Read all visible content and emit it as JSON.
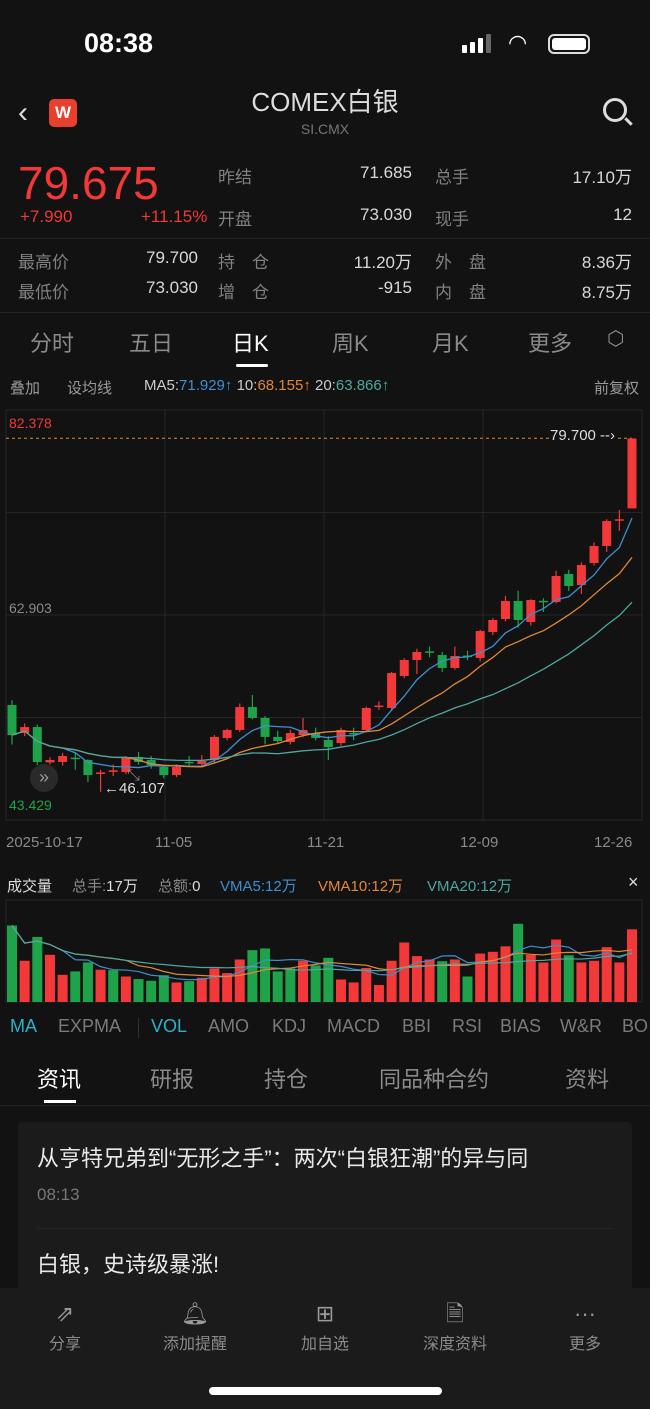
{
  "status": {
    "time": "08:38"
  },
  "header": {
    "title": "COMEX白银",
    "code": "SI.CMX",
    "logo": "W"
  },
  "quote": {
    "price": "79.675",
    "change": "+7.990",
    "change_pct": "+11.15%",
    "fields": [
      {
        "label": "昨结",
        "value": "71.685"
      },
      {
        "label": "总手",
        "value": "17.10万"
      },
      {
        "label": "开盘",
        "value": "73.030"
      },
      {
        "label": "现手",
        "value": "12"
      },
      {
        "label": "最高价",
        "value": "79.700"
      },
      {
        "label": "持　仓",
        "value": "11.20万"
      },
      {
        "label": "外　盘",
        "value": "8.36万"
      },
      {
        "label": "最低价",
        "value": "73.030"
      },
      {
        "label": "增　仓",
        "value": "-915"
      },
      {
        "label": "内　盘",
        "value": "8.75万"
      }
    ]
  },
  "period_tabs": [
    "分时",
    "五日",
    "日K",
    "周K",
    "月K",
    "更多"
  ],
  "active_period": "日K",
  "ma_bar": {
    "overlay": "叠加",
    "set_ma": "设均线",
    "ma5_label": "MA5:",
    "ma5": "71.929↑",
    "ma10_label": "10:",
    "ma10": "68.155↑",
    "ma20_label": "20:",
    "ma20": "63.866↑",
    "adjust": "前复权"
  },
  "colors": {
    "up": "#f23838",
    "down": "#1fa34a",
    "ma5": "#3d8fd1",
    "ma10": "#e0883a",
    "ma20": "#4fa6a0"
  },
  "chart_data": {
    "type": "candlestick",
    "ylim": [
      43.429,
      82.378
    ],
    "y_ticks": [
      "82.378",
      "62.903",
      "43.429"
    ],
    "x_ticks": [
      "2025-10-17",
      "11-05",
      "11-21",
      "12-09",
      "12-26"
    ],
    "high_marker": "79.700",
    "low_marker": "←46.107",
    "candles": [
      [
        54.35,
        54.8,
        50.6,
        51.5
      ],
      [
        51.69,
        52.6,
        51.4,
        52.26
      ],
      [
        52.26,
        52.5,
        48.65,
        48.94
      ],
      [
        48.9,
        49.4,
        48.7,
        49.13
      ],
      [
        48.94,
        49.8,
        48.6,
        49.51
      ],
      [
        49.35,
        49.9,
        48.2,
        49.25
      ],
      [
        49.13,
        49.2,
        47.04,
        47.7
      ],
      [
        47.8,
        48.2,
        46.107,
        47.95
      ],
      [
        48.0,
        48.7,
        47.6,
        48.15
      ],
      [
        47.99,
        49.5,
        47.8,
        49.32
      ],
      [
        49.41,
        49.9,
        48.7,
        48.94
      ],
      [
        49.13,
        49.5,
        48.3,
        48.65
      ],
      [
        48.46,
        48.6,
        47.4,
        47.7
      ],
      [
        47.7,
        48.7,
        47.5,
        48.46
      ],
      [
        48.95,
        49.5,
        48.5,
        48.9
      ],
      [
        48.75,
        49.6,
        48.6,
        49.03
      ],
      [
        49.13,
        51.5,
        48.9,
        51.32
      ],
      [
        51.22,
        52.1,
        51.0,
        51.98
      ],
      [
        51.98,
        54.5,
        51.8,
        54.16
      ],
      [
        54.16,
        55.3,
        53.0,
        53.12
      ],
      [
        53.12,
        53.3,
        50.6,
        51.32
      ],
      [
        51.32,
        51.9,
        50.7,
        50.93
      ],
      [
        50.84,
        52.0,
        50.6,
        51.69
      ],
      [
        51.5,
        53.12,
        51.3,
        51.98
      ],
      [
        51.69,
        52.2,
        51.0,
        51.22
      ],
      [
        51.03,
        51.4,
        49.13,
        50.36
      ],
      [
        50.74,
        52.2,
        50.5,
        51.98
      ],
      [
        51.7,
        52.2,
        51.0,
        51.6
      ],
      [
        51.98,
        54.2,
        51.8,
        54.07
      ],
      [
        54.2,
        54.7,
        53.9,
        54.3
      ],
      [
        54.07,
        57.5,
        53.8,
        57.39
      ],
      [
        57.11,
        58.8,
        56.9,
        58.63
      ],
      [
        58.63,
        59.7,
        57.3,
        59.39
      ],
      [
        59.45,
        59.9,
        58.9,
        59.35
      ],
      [
        59.1,
        59.4,
        57.5,
        57.87
      ],
      [
        57.87,
        59.9,
        57.7,
        59.01
      ],
      [
        59.05,
        59.5,
        58.6,
        58.95
      ],
      [
        58.82,
        61.5,
        58.5,
        61.38
      ],
      [
        61.29,
        62.6,
        61.0,
        62.43
      ],
      [
        62.52,
        64.7,
        62.3,
        64.23
      ],
      [
        64.23,
        65.2,
        61.7,
        62.43
      ],
      [
        62.24,
        64.4,
        61.9,
        64.33
      ],
      [
        64.25,
        64.5,
        63.2,
        64.15
      ],
      [
        64.14,
        67.1,
        64.0,
        66.61
      ],
      [
        66.8,
        67.2,
        65.2,
        65.66
      ],
      [
        65.75,
        67.9,
        64.9,
        67.65
      ],
      [
        67.84,
        69.8,
        67.6,
        69.46
      ],
      [
        69.46,
        72.0,
        68.9,
        71.83
      ],
      [
        71.9,
        72.88,
        70.9,
        72.0
      ],
      [
        73.03,
        79.7,
        73.03,
        79.675
      ]
    ],
    "ma_periods": [
      5,
      10,
      20
    ]
  },
  "volume": {
    "title": "成交量",
    "total_label": "总手:",
    "total": "17万",
    "amount_label": "总额:",
    "amount": "0",
    "vma5": "VMA5:12万",
    "vma10": "VMA10:12万",
    "vma20": "VMA20:12万",
    "close": "×",
    "unit": "万",
    "values": [
      18.0,
      9.7,
      15.3,
      11.1,
      6.4,
      7.2,
      9.3,
      7.6,
      7.5,
      6.0,
      5.4,
      5.0,
      6.3,
      4.6,
      4.9,
      5.7,
      7.9,
      6.8,
      10.0,
      12.2,
      12.6,
      7.2,
      7.9,
      9.7,
      8.6,
      10.4,
      5.3,
      4.6,
      8.0,
      4.0,
      9.7,
      14.0,
      10.8,
      10.0,
      9.6,
      10.0,
      6.0,
      11.4,
      11.8,
      13.1,
      18.4,
      11.1,
      9.3,
      14.7,
      11.0,
      9.3,
      9.7,
      12.9,
      9.3,
      17.1
    ],
    "up": [
      0,
      1,
      0,
      1,
      1,
      0,
      0,
      1,
      0,
      1,
      0,
      0,
      0,
      1,
      0,
      1,
      1,
      1,
      1,
      0,
      0,
      0,
      0,
      1,
      0,
      0,
      1,
      1,
      1,
      1,
      1,
      1,
      1,
      1,
      0,
      1,
      0,
      1,
      1,
      1,
      0,
      1,
      1,
      1,
      0,
      1,
      1,
      1,
      1,
      1
    ]
  },
  "indicators": [
    "MA",
    "EXPMA",
    "VOL",
    "AMO",
    "KDJ",
    "MACD",
    "BBI",
    "RSI",
    "BIAS",
    "W&R",
    "BO"
  ],
  "news_tabs": [
    "资讯",
    "研报",
    "持仓",
    "同品种合约",
    "资料"
  ],
  "news": [
    {
      "title": "从亨特兄弟到“无形之手”：两次“白银狂潮”的异与同",
      "time": "08:13"
    },
    {
      "title": "白银，史诗级暴涨!"
    }
  ],
  "toolbar": [
    {
      "label": "分享",
      "icon": "share-icon"
    },
    {
      "label": "添加提醒",
      "icon": "bell-icon"
    },
    {
      "label": "加自选",
      "icon": "add-watchlist-icon"
    },
    {
      "label": "深度资料",
      "icon": "document-icon"
    },
    {
      "label": "更多",
      "icon": "more-icon"
    }
  ]
}
